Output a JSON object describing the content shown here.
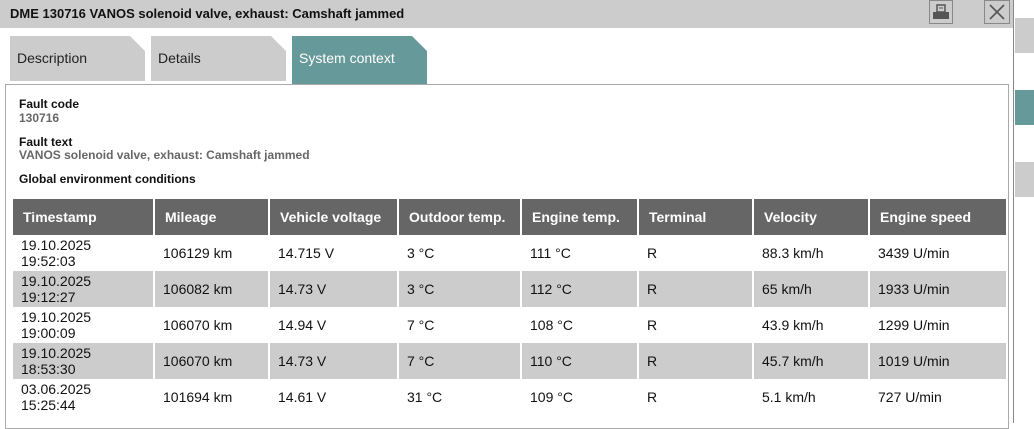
{
  "window": {
    "title": "DME 130716 VANOS solenoid valve, exhaust: Camshaft jammed",
    "print_icon": "printer-icon",
    "close_icon": "close-icon"
  },
  "tabs": [
    {
      "label": "Description",
      "active": false
    },
    {
      "label": "Details",
      "active": false
    },
    {
      "label": "System context",
      "active": true
    }
  ],
  "accent": "#669999",
  "fault": {
    "code_label": "Fault code",
    "code": "130716",
    "text_label": "Fault text",
    "text": "VANOS solenoid valve, exhaust: Camshaft jammed",
    "env_label": "Global environment conditions"
  },
  "table": {
    "headers": [
      "Timestamp",
      "Mileage",
      "Vehicle voltage",
      "Outdoor temp.",
      "Engine temp.",
      "Terminal",
      "Velocity",
      "Engine speed"
    ],
    "rows": [
      [
        "19.10.2025 19:52:03",
        "106129 km",
        "14.715 V",
        "3 °C",
        "111 °C",
        "R",
        "88.3 km/h",
        "3439 U/min"
      ],
      [
        "19.10.2025 19:12:27",
        "106082 km",
        "14.73 V",
        "3 °C",
        "112 °C",
        "R",
        "65 km/h",
        "1933 U/min"
      ],
      [
        "19.10.2025 19:00:09",
        "106070 km",
        "14.94 V",
        "7 °C",
        "108 °C",
        "R",
        "43.9 km/h",
        "1299 U/min"
      ],
      [
        "19.10.2025 18:53:30",
        "106070 km",
        "14.73 V",
        "7 °C",
        "110 °C",
        "R",
        "45.7 km/h",
        "1019 U/min"
      ],
      [
        "03.06.2025 15:25:44",
        "101694 km",
        "14.61 V",
        "31 °C",
        "109 °C",
        "R",
        "5.1 km/h",
        "727 U/min"
      ]
    ]
  }
}
